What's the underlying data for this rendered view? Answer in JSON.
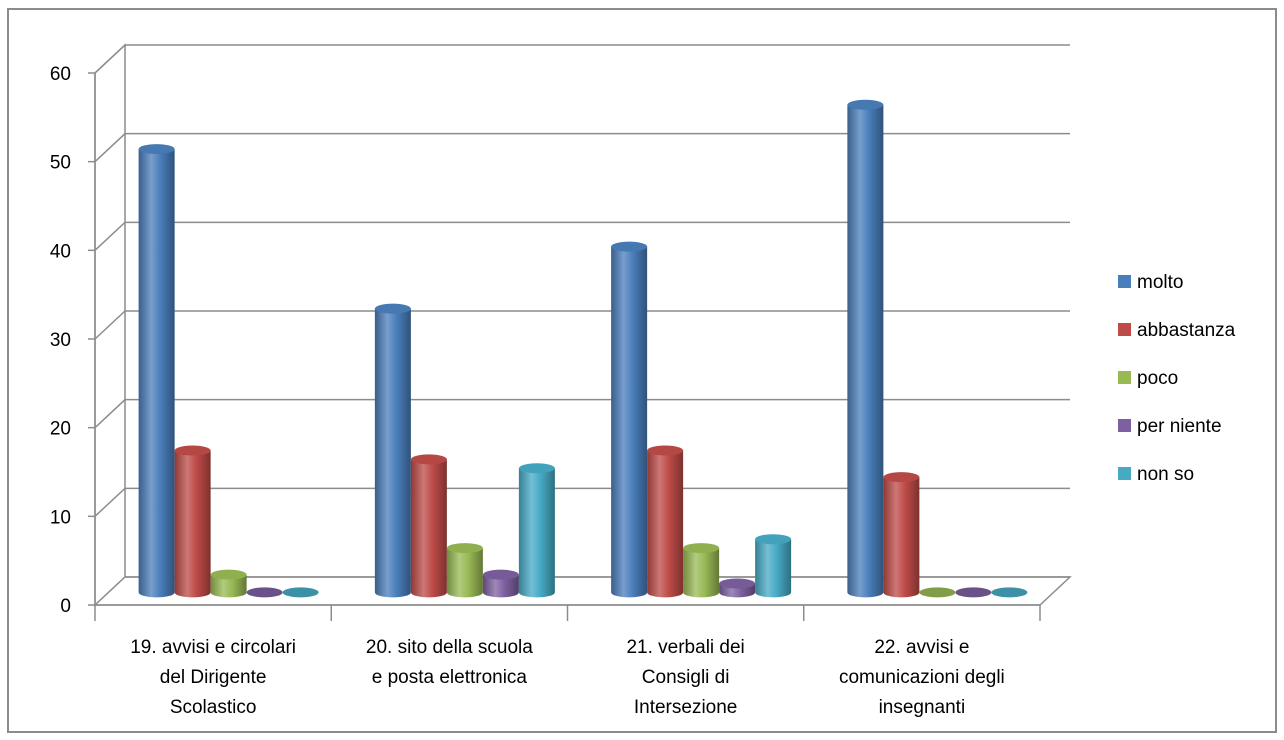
{
  "chart_data": {
    "type": "bar",
    "style": "3d-cylinder",
    "title": "",
    "xlabel": "",
    "ylabel": "",
    "ylim": [
      0,
      60
    ],
    "yticks": [
      "0",
      "10",
      "20",
      "30",
      "40",
      "50",
      "60"
    ],
    "grid": true,
    "legend_position": "right",
    "categories": [
      [
        "19. avvisi e circolari",
        "del Dirigente",
        "Scolastico"
      ],
      [
        "20. sito della scuola",
        "e posta elettronica"
      ],
      [
        "21. verbali dei",
        "Consigli di",
        "Intersezione"
      ],
      [
        "22. avvisi e",
        "comunicazioni degli",
        "insegnanti"
      ]
    ],
    "series": [
      {
        "name": "molto",
        "color": "#4a7ebb",
        "values": [
          50,
          32,
          39,
          55
        ]
      },
      {
        "name": "abbastanza",
        "color": "#be4b48",
        "values": [
          16,
          15,
          16,
          13
        ]
      },
      {
        "name": "poco",
        "color": "#98b954",
        "values": [
          2,
          5,
          5,
          0
        ]
      },
      {
        "name": "per niente",
        "color": "#7d60a0",
        "values": [
          0,
          2,
          1,
          0
        ]
      },
      {
        "name": "non so",
        "color": "#46aac5",
        "values": [
          0,
          14,
          6,
          0
        ]
      }
    ]
  }
}
